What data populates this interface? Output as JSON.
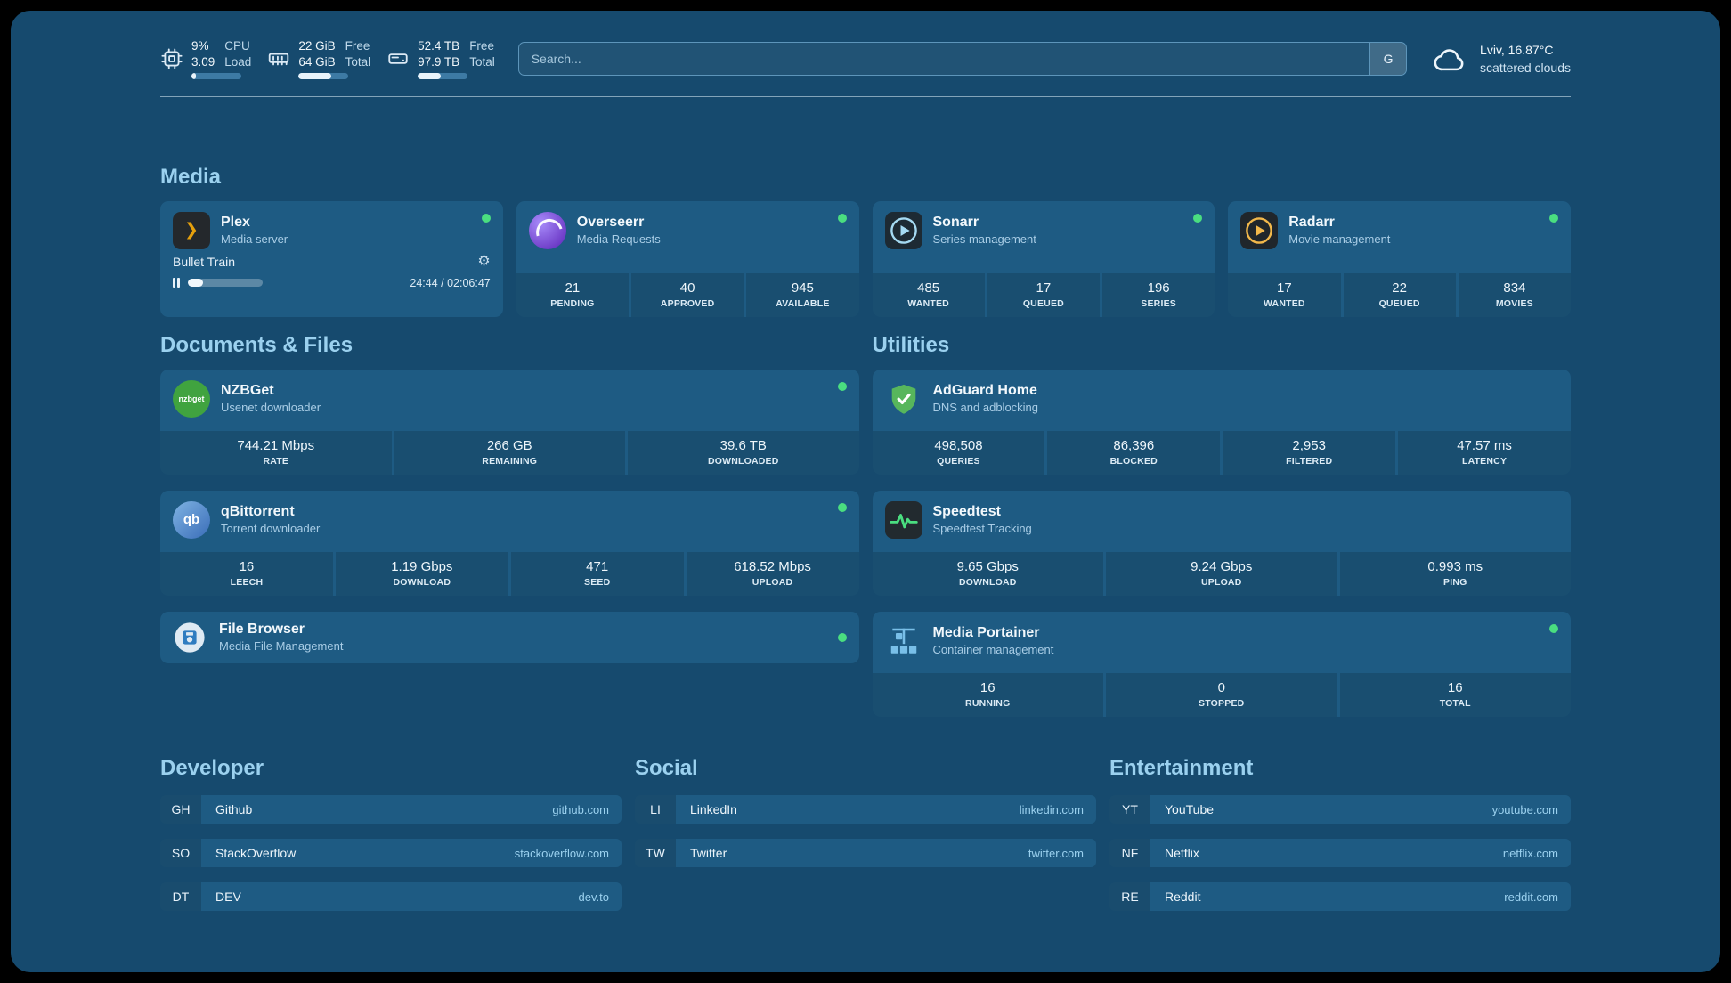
{
  "topbar": {
    "resources": [
      {
        "name": "cpu",
        "values": [
          "9%",
          "3.09"
        ],
        "labels": [
          "CPU",
          "Load"
        ],
        "percent": 9
      },
      {
        "name": "memory",
        "values": [
          "22 GiB",
          "64 GiB"
        ],
        "labels": [
          "Free",
          "Total"
        ],
        "percent": 66
      },
      {
        "name": "disk",
        "values": [
          "52.4 TB",
          "97.9 TB"
        ],
        "labels": [
          "Free",
          "Total"
        ],
        "percent": 46
      }
    ],
    "search": {
      "placeholder": "Search...",
      "provider_label": "G"
    },
    "weather": {
      "location": "Lviv, 16.87°C",
      "condition": "scattered clouds"
    }
  },
  "sections": {
    "media": "Media",
    "documents": "Documents & Files",
    "utilities": "Utilities"
  },
  "icons": {
    "plex_glyph": "❯",
    "gear_glyph": "⚙",
    "qb_glyph": "qb",
    "nzbget_glyph": "nzbget"
  },
  "services": {
    "plex": {
      "name": "Plex",
      "subtitle": "Media server",
      "now_playing": "Bullet Train",
      "time": "24:44 / 02:06:47",
      "progress_percent": 20
    },
    "overseerr": {
      "name": "Overseerr",
      "subtitle": "Media Requests",
      "stats": [
        {
          "value": "21",
          "label": "PENDING"
        },
        {
          "value": "40",
          "label": "APPROVED"
        },
        {
          "value": "945",
          "label": "AVAILABLE"
        }
      ]
    },
    "sonarr": {
      "name": "Sonarr",
      "subtitle": "Series management",
      "stats": [
        {
          "value": "485",
          "label": "WANTED"
        },
        {
          "value": "17",
          "label": "QUEUED"
        },
        {
          "value": "196",
          "label": "SERIES"
        }
      ]
    },
    "radarr": {
      "name": "Radarr",
      "subtitle": "Movie management",
      "stats": [
        {
          "value": "17",
          "label": "WANTED"
        },
        {
          "value": "22",
          "label": "QUEUED"
        },
        {
          "value": "834",
          "label": "MOVIES"
        }
      ]
    },
    "nzbget": {
      "name": "NZBGet",
      "subtitle": "Usenet downloader",
      "stats": [
        {
          "value": "744.21 Mbps",
          "label": "RATE"
        },
        {
          "value": "266 GB",
          "label": "REMAINING"
        },
        {
          "value": "39.6 TB",
          "label": "DOWNLOADED"
        }
      ]
    },
    "qbittorrent": {
      "name": "qBittorrent",
      "subtitle": "Torrent downloader",
      "stats": [
        {
          "value": "16",
          "label": "LEECH"
        },
        {
          "value": "1.19 Gbps",
          "label": "DOWNLOAD"
        },
        {
          "value": "471",
          "label": "SEED"
        },
        {
          "value": "618.52 Mbps",
          "label": "UPLOAD"
        }
      ]
    },
    "filebrowser": {
      "name": "File Browser",
      "subtitle": "Media File Management"
    },
    "adguard": {
      "name": "AdGuard Home",
      "subtitle": "DNS and adblocking",
      "stats": [
        {
          "value": "498,508",
          "label": "QUERIES"
        },
        {
          "value": "86,396",
          "label": "BLOCKED"
        },
        {
          "value": "2,953",
          "label": "FILTERED"
        },
        {
          "value": "47.57 ms",
          "label": "LATENCY"
        }
      ]
    },
    "speedtest": {
      "name": "Speedtest",
      "subtitle": "Speedtest Tracking",
      "stats": [
        {
          "value": "9.65 Gbps",
          "label": "DOWNLOAD"
        },
        {
          "value": "9.24 Gbps",
          "label": "UPLOAD"
        },
        {
          "value": "0.993 ms",
          "label": "PING"
        }
      ]
    },
    "portainer": {
      "name": "Media Portainer",
      "subtitle": "Container management",
      "stats": [
        {
          "value": "16",
          "label": "RUNNING"
        },
        {
          "value": "0",
          "label": "STOPPED"
        },
        {
          "value": "16",
          "label": "TOTAL"
        }
      ]
    }
  },
  "bookmarks": [
    {
      "title": "Developer",
      "items": [
        {
          "abbr": "GH",
          "name": "Github",
          "domain": "github.com"
        },
        {
          "abbr": "SO",
          "name": "StackOverflow",
          "domain": "stackoverflow.com"
        },
        {
          "abbr": "DT",
          "name": "DEV",
          "domain": "dev.to"
        }
      ]
    },
    {
      "title": "Social",
      "items": [
        {
          "abbr": "LI",
          "name": "LinkedIn",
          "domain": "linkedin.com"
        },
        {
          "abbr": "TW",
          "name": "Twitter",
          "domain": "twitter.com"
        }
      ]
    },
    {
      "title": "Entertainment",
      "items": [
        {
          "abbr": "YT",
          "name": "YouTube",
          "domain": "youtube.com"
        },
        {
          "abbr": "NF",
          "name": "Netflix",
          "domain": "netflix.com"
        },
        {
          "abbr": "RE",
          "name": "Reddit",
          "domain": "reddit.com"
        }
      ]
    }
  ],
  "colors": {
    "page_bg": "#164a6e",
    "card_bg": "#1e5b83",
    "heading_text": "#9bd1ef",
    "status_green": "#4ade80",
    "plex_amber": "#e5a00d"
  }
}
